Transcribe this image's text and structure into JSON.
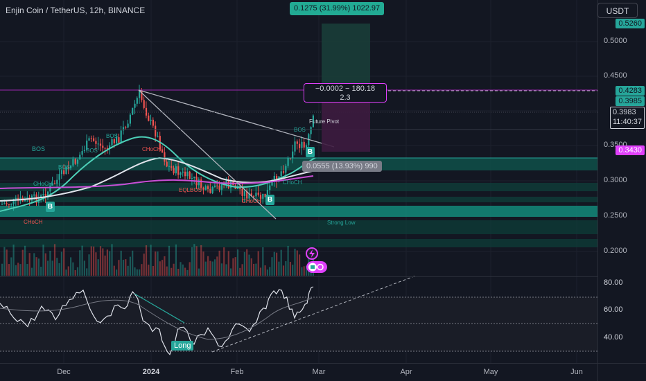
{
  "header": {
    "symbol_title": "Enjin Coin / TetherUS, 12h, BINANCE",
    "currency": "USDT"
  },
  "measure": {
    "label": "0.1275 (31.99%) 1022.97"
  },
  "position_tool": {
    "line1": "−0.0002 − 180.18",
    "line2": "2.3"
  },
  "range_box": "0.0555 (13.93%) 990",
  "price_axis": {
    "ticks": [
      "0.5000",
      "0.4500",
      "0.3000",
      "0.2500",
      "0.2000"
    ],
    "tags": [
      {
        "value": "0.5260",
        "bg": "#26a69a",
        "fg": "#131722"
      },
      {
        "value": "0.4283",
        "bg": "#26a69a",
        "fg": "#131722"
      },
      {
        "value": "0.3985",
        "bg": "#26a69a",
        "fg": "#131722"
      },
      {
        "value": "0.3430",
        "bg": "#e040fb",
        "fg": "#ffffff"
      }
    ],
    "current_price": "0.3983",
    "countdown": "11:40:37",
    "partial_tick": "0.3500"
  },
  "rsi_axis": {
    "ticks": [
      "80.00",
      "60.00",
      "40.00"
    ]
  },
  "time_axis": {
    "labels": [
      "Dec",
      "2024",
      "Feb",
      "Mar",
      "Apr",
      "May",
      "Jun"
    ]
  },
  "annotations": {
    "bos": "BOS",
    "choch": "CHoCH",
    "eqlbos": "EQLBOS",
    "future_pivot": "Future Pivot",
    "strong_low": "Strong Low",
    "signal_b": "B",
    "long": "Long"
  },
  "colors": {
    "background": "#131722",
    "up": "#26a69a",
    "down": "#ef5350",
    "accent_magenta": "#e040fb",
    "ema_teal": "#4dd0b8",
    "ema_white": "#e0e3eb"
  },
  "icons": [
    "lightning-icon",
    "calendar-icon"
  ]
}
